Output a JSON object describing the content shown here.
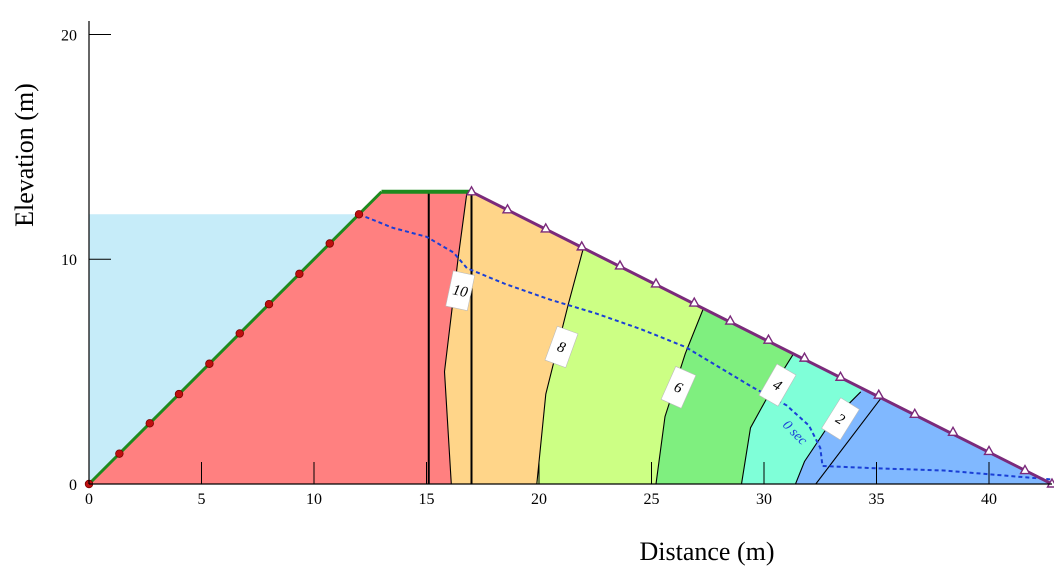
{
  "chart_data": {
    "type": "area",
    "title": "",
    "xlabel": "Distance (m)",
    "ylabel": "Elevation (m)",
    "xlim": [
      0,
      42.8
    ],
    "ylim": [
      0,
      20.6
    ],
    "x_ticks": [
      0,
      5,
      10,
      15,
      20,
      25,
      30,
      35,
      40
    ],
    "y_ticks": [
      0,
      10,
      20
    ],
    "reservoir_level": 12,
    "dam_profile": [
      [
        0,
        0
      ],
      [
        13,
        13
      ],
      [
        17,
        13
      ],
      [
        42.8,
        0
      ]
    ],
    "core_lines": [
      {
        "x_bottom": 15.1,
        "x_top": 15.1
      },
      {
        "x_bottom": 17,
        "x_top": 17
      }
    ],
    "contour_lines": [
      {
        "label": "10",
        "points": [
          [
            16.1,
            0
          ],
          [
            15.8,
            5
          ],
          [
            16.4,
            10
          ],
          [
            16.8,
            13
          ]
        ]
      },
      {
        "label": "8",
        "points": [
          [
            19.9,
            0
          ],
          [
            20.3,
            4
          ],
          [
            21.3,
            8
          ],
          [
            22.0,
            10.6
          ]
        ]
      },
      {
        "label": "6",
        "points": [
          [
            25.2,
            0
          ],
          [
            25.6,
            3
          ],
          [
            26.5,
            5.8
          ],
          [
            27.5,
            8.3
          ]
        ]
      },
      {
        "label": "4",
        "points": [
          [
            29.0,
            0
          ],
          [
            29.4,
            2.5
          ],
          [
            30.5,
            4.5
          ],
          [
            31.5,
            6.1
          ]
        ]
      },
      {
        "label": "2",
        "points": [
          [
            31.4,
            0
          ],
          [
            31.8,
            1.0
          ],
          [
            33.0,
            2.8
          ],
          [
            34.3,
            4.1
          ]
        ]
      },
      {
        "label": "",
        "points": [
          [
            32.3,
            0
          ],
          [
            35.3,
            3.95
          ]
        ]
      }
    ],
    "seepage_line": {
      "label": "0 sec",
      "points": [
        [
          12,
          12
        ],
        [
          13.5,
          11.4
        ],
        [
          15.0,
          11.0
        ],
        [
          16.2,
          10.3
        ],
        [
          16.8,
          9.6
        ],
        [
          18.5,
          8.9
        ],
        [
          20.5,
          8.2
        ],
        [
          22.5,
          7.6
        ],
        [
          24.5,
          6.9
        ],
        [
          26.5,
          6.1
        ],
        [
          28.0,
          5.2
        ],
        [
          29.5,
          4.3
        ],
        [
          31.0,
          3.5
        ],
        [
          32.0,
          2.6
        ],
        [
          32.5,
          1.6
        ],
        [
          32.6,
          0.8
        ],
        [
          35.0,
          0.7
        ],
        [
          38.0,
          0.6
        ],
        [
          42.8,
          0.2
        ]
      ]
    },
    "upstream_markers": [
      [
        0,
        0
      ],
      [
        1.35,
        1.35
      ],
      [
        2.7,
        2.7
      ],
      [
        4.0,
        4.0
      ],
      [
        5.35,
        5.35
      ],
      [
        6.7,
        6.7
      ],
      [
        8.0,
        8.0
      ],
      [
        9.35,
        9.35
      ],
      [
        10.7,
        10.7
      ],
      [
        12,
        12
      ]
    ],
    "downstream_markers": [
      [
        17,
        13
      ],
      [
        18.6,
        12.2
      ],
      [
        20.3,
        11.35
      ],
      [
        21.9,
        10.55
      ],
      [
        23.6,
        9.7
      ],
      [
        25.2,
        8.9
      ],
      [
        26.9,
        8.05
      ],
      [
        28.5,
        7.25
      ],
      [
        30.2,
        6.4
      ],
      [
        31.8,
        5.6
      ],
      [
        33.4,
        4.75
      ],
      [
        35.1,
        3.95
      ],
      [
        36.7,
        3.1
      ],
      [
        38.4,
        2.3
      ],
      [
        40.0,
        1.45
      ],
      [
        41.6,
        0.6
      ],
      [
        42.8,
        0
      ]
    ],
    "zones": [
      {
        "color": "#ff8080"
      },
      {
        "color": "#ffd589"
      },
      {
        "color": "#ccff84"
      },
      {
        "color": "#7fef7f"
      },
      {
        "color": "#7fffd8"
      },
      {
        "color": "#80b8ff"
      }
    ],
    "colors": {
      "reservoir": "#c6ecf9",
      "crest": "#1e8a1e",
      "upstream_face": "#1e8a1e",
      "upstream_marker": "#c01010",
      "downstream_face": "#7b2a7b",
      "downstream_marker": "#ffffff",
      "seepage": "#1a3fd6",
      "contour": "#000000"
    }
  }
}
